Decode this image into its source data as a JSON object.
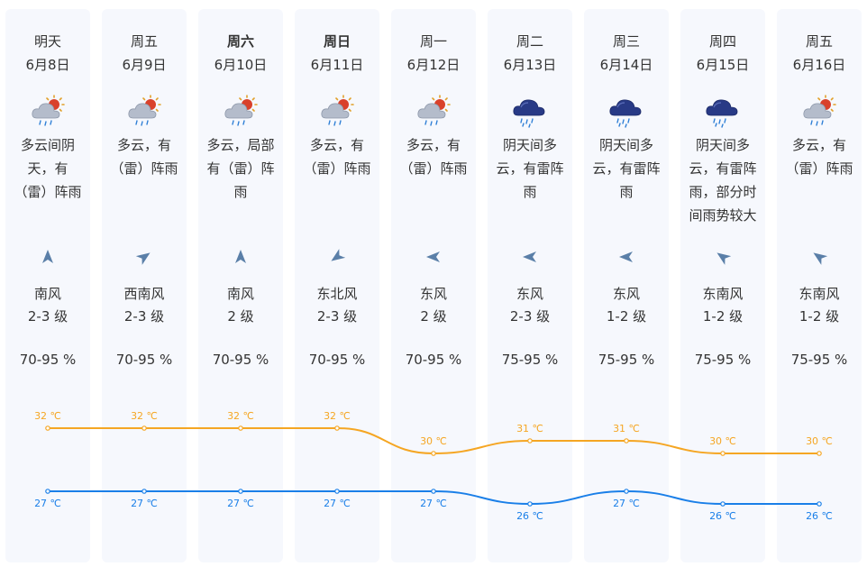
{
  "colors": {
    "card_bg": "#f6f8fd",
    "text": "#333333",
    "high_line": "#f5a623",
    "low_line": "#1a7fe8",
    "wind_arrow": "#5a7fa8"
  },
  "days": [
    {
      "weekday": "明天",
      "date": "6月8日",
      "bold": false,
      "icon": "thunder-shower-partly-cloudy-icon",
      "desc": "多云间阴天，有（雷）阵雨",
      "wind_dir": "南风",
      "wind_level": "2-3 级",
      "wind_rotation": 0,
      "humidity": "70-95 %"
    },
    {
      "weekday": "周五",
      "date": "6月9日",
      "bold": false,
      "icon": "thunder-shower-partly-cloudy-icon",
      "desc": "多云，有（雷）阵雨",
      "wind_dir": "西南风",
      "wind_level": "2-3 级",
      "wind_rotation": 55,
      "humidity": "70-95 %"
    },
    {
      "weekday": "周六",
      "date": "6月10日",
      "bold": true,
      "icon": "thunder-shower-partly-cloudy-icon",
      "desc": "多云，局部有（雷）阵雨",
      "wind_dir": "南风",
      "wind_level": "2 级",
      "wind_rotation": 0,
      "humidity": "70-95 %"
    },
    {
      "weekday": "周日",
      "date": "6月11日",
      "bold": true,
      "icon": "thunder-shower-partly-cloudy-icon",
      "desc": "多云，有（雷）阵雨",
      "wind_dir": "东北风",
      "wind_level": "2-3 级",
      "wind_rotation": 235,
      "humidity": "70-95 %"
    },
    {
      "weekday": "周一",
      "date": "6月12日",
      "bold": false,
      "icon": "thunder-shower-partly-cloudy-icon",
      "desc": "多云，有（雷）阵雨",
      "wind_dir": "东风",
      "wind_level": "2 级",
      "wind_rotation": 270,
      "humidity": "70-95 %"
    },
    {
      "weekday": "周二",
      "date": "6月13日",
      "bold": false,
      "icon": "thunderstorm-cloud-icon",
      "desc": "阴天间多云，有雷阵雨",
      "wind_dir": "东风",
      "wind_level": "2-3 级",
      "wind_rotation": 270,
      "humidity": "75-95 %"
    },
    {
      "weekday": "周三",
      "date": "6月14日",
      "bold": false,
      "icon": "thunderstorm-cloud-icon",
      "desc": "阴天间多云，有雷阵雨",
      "wind_dir": "东风",
      "wind_level": "1-2 级",
      "wind_rotation": 270,
      "humidity": "75-95 %"
    },
    {
      "weekday": "周四",
      "date": "6月15日",
      "bold": false,
      "icon": "thunderstorm-cloud-icon",
      "desc": "阴天间多云，有雷阵雨，部分时间雨势较大",
      "wind_dir": "东南风",
      "wind_level": "1-2 级",
      "wind_rotation": 305,
      "humidity": "75-95 %"
    },
    {
      "weekday": "周五",
      "date": "6月16日",
      "bold": false,
      "icon": "thunder-shower-partly-cloudy-icon",
      "desc": "多云，有（雷）阵雨",
      "wind_dir": "东南风",
      "wind_level": "1-2 级",
      "wind_rotation": 305,
      "humidity": "75-95 %"
    }
  ],
  "chart_data": {
    "type": "line",
    "x": [
      "6月8日",
      "6月9日",
      "6月10日",
      "6月11日",
      "6月12日",
      "6月13日",
      "6月14日",
      "6月15日",
      "6月16日"
    ],
    "unit": "℃",
    "series": [
      {
        "key": "high",
        "values": [
          32,
          32,
          32,
          32,
          30,
          31,
          31,
          30,
          30
        ],
        "labels": [
          "32 ℃",
          "32 ℃",
          "32 ℃",
          "32 ℃",
          "30 ℃",
          "31 ℃",
          "31 ℃",
          "30 ℃",
          "30 ℃"
        ]
      },
      {
        "key": "low",
        "values": [
          27,
          27,
          27,
          27,
          27,
          26,
          27,
          26,
          26
        ],
        "labels": [
          "27 ℃",
          "27 ℃",
          "27 ℃",
          "27 ℃",
          "27 ℃",
          "26 ℃",
          "27 ℃",
          "26 ℃",
          "26 ℃"
        ]
      }
    ]
  }
}
